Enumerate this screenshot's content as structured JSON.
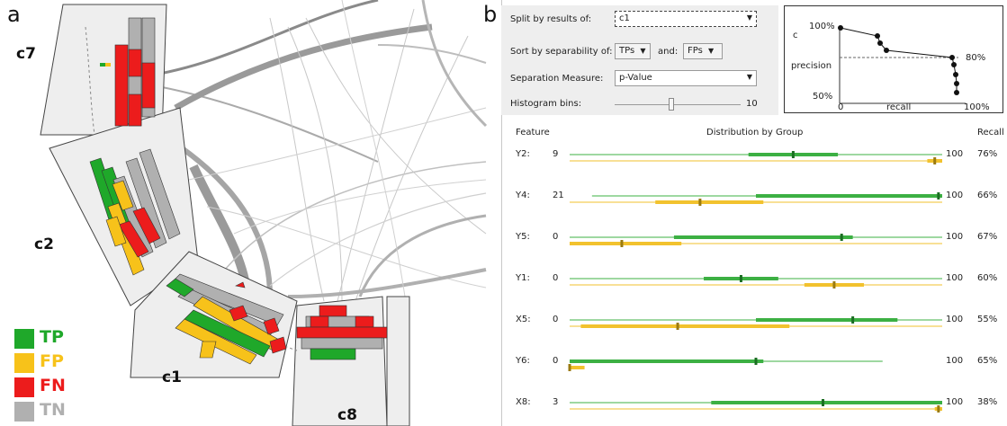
{
  "panel_a": {
    "tag": "a",
    "cluster_labels": [
      "c7",
      "c2",
      "c1",
      "c8"
    ],
    "legend": [
      {
        "label": "TP",
        "color": "#1fa82a"
      },
      {
        "label": "FP",
        "color": "#f7c21a"
      },
      {
        "label": "FN",
        "color": "#ec1c1c"
      },
      {
        "label": "TN",
        "color": "#b0b0b0"
      }
    ]
  },
  "panel_b": {
    "tag": "b",
    "controls": {
      "split_label": "Split by results of:",
      "split_value": "c1",
      "sort_label": "Sort by separability of:",
      "sort_a": "TPs",
      "sort_and": "and:",
      "sort_b": "FPs",
      "measure_label": "Separation Measure:",
      "measure_value": "p-Value",
      "bins_label": "Histogram bins:",
      "bins_value": "10",
      "bins_fraction": 0.45
    },
    "precision_recall": {
      "title": "c",
      "y_label": "precision",
      "y_top": "100%",
      "y_bottom": "50%",
      "x_left": "0",
      "x_mid": "recall",
      "x_right": "100%",
      "ref_label": "80%"
    },
    "table": {
      "headers": {
        "feature": "Feature",
        "dist": "Distribution by Group",
        "recall": "Recall"
      },
      "rows": [
        {
          "feature": "Y2:",
          "value": "9",
          "max": "100",
          "recall": "76%",
          "green": {
            "lo": 0.0,
            "q1": 0.48,
            "median": 0.6,
            "q3": 0.72,
            "hi": 1.0
          },
          "yellow": {
            "lo": 0.0,
            "q1": 0.96,
            "median": 0.98,
            "q3": 1.0,
            "hi": 1.0
          }
        },
        {
          "feature": "Y4:",
          "value": "21",
          "max": "100",
          "recall": "66%",
          "green": {
            "lo": 0.06,
            "q1": 0.5,
            "median": 0.99,
            "q3": 1.0,
            "hi": 1.0
          },
          "yellow": {
            "lo": 0.0,
            "q1": 0.23,
            "median": 0.35,
            "q3": 0.52,
            "hi": 1.0
          }
        },
        {
          "feature": "Y5:",
          "value": "0",
          "max": "100",
          "recall": "67%",
          "green": {
            "lo": 0.0,
            "q1": 0.28,
            "median": 0.73,
            "q3": 0.76,
            "hi": 1.0
          },
          "yellow": {
            "lo": 0.0,
            "q1": 0.0,
            "median": 0.14,
            "q3": 0.3,
            "hi": 1.0
          }
        },
        {
          "feature": "Y1:",
          "value": "0",
          "max": "100",
          "recall": "60%",
          "green": {
            "lo": 0.0,
            "q1": 0.36,
            "median": 0.46,
            "q3": 0.56,
            "hi": 1.0
          },
          "yellow": {
            "lo": 0.0,
            "q1": 0.63,
            "median": 0.71,
            "q3": 0.79,
            "hi": 1.0
          }
        },
        {
          "feature": "X5:",
          "value": "0",
          "max": "100",
          "recall": "55%",
          "green": {
            "lo": 0.0,
            "q1": 0.5,
            "median": 0.76,
            "q3": 0.88,
            "hi": 1.0
          },
          "yellow": {
            "lo": 0.0,
            "q1": 0.03,
            "median": 0.29,
            "q3": 0.59,
            "hi": 1.0
          }
        },
        {
          "feature": "Y6:",
          "value": "0",
          "max": "100",
          "recall": "65%",
          "green": {
            "lo": 0.0,
            "q1": 0.0,
            "median": 0.5,
            "q3": 0.52,
            "hi": 0.84
          },
          "yellow": {
            "lo": 0.0,
            "q1": 0.0,
            "median": 0.0,
            "q3": 0.04,
            "hi": 0.04
          }
        },
        {
          "feature": "X8:",
          "value": "3",
          "max": "100",
          "recall": "38%",
          "green": {
            "lo": 0.0,
            "q1": 0.38,
            "median": 0.68,
            "q3": 1.0,
            "hi": 1.0
          },
          "yellow": {
            "lo": 0.0,
            "q1": 0.98,
            "median": 0.99,
            "q3": 1.0,
            "hi": 1.0
          }
        }
      ]
    }
  }
}
